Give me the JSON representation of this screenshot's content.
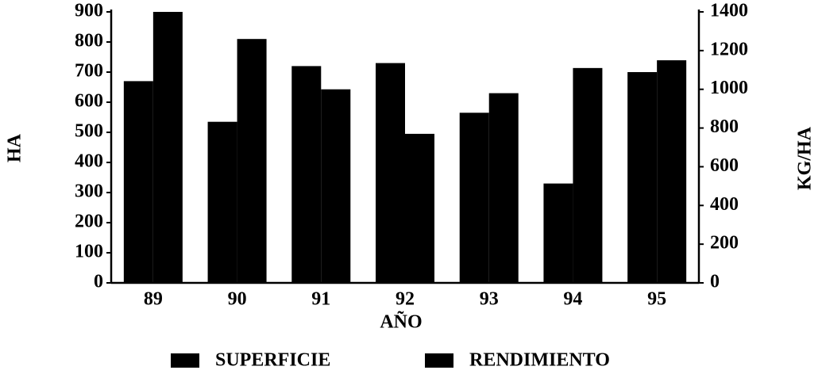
{
  "chart_data": {
    "type": "bar",
    "categories": [
      "89",
      "90",
      "91",
      "92",
      "93",
      "94",
      "95"
    ],
    "series": [
      {
        "name": "SUPERFICIE",
        "color": "#000000",
        "values": [
          670,
          535,
          720,
          730,
          565,
          330,
          700
        ]
      },
      {
        "name": "RENDIMIENTO",
        "color": "#000000",
        "axis": "y2",
        "values": [
          1400,
          1260,
          1000,
          770,
          980,
          1110,
          1150
        ]
      }
    ],
    "ylabel": "HA",
    "y2label": "KG/HA",
    "xlabel": "AÑO",
    "ylim": [
      0,
      900
    ],
    "yticks": [
      0,
      100,
      200,
      300,
      400,
      500,
      600,
      700,
      800,
      900
    ],
    "y2lim": [
      0,
      1400
    ],
    "y2ticks": [
      0,
      200,
      400,
      600,
      800,
      1000,
      1200,
      1400
    ],
    "grid": false
  }
}
